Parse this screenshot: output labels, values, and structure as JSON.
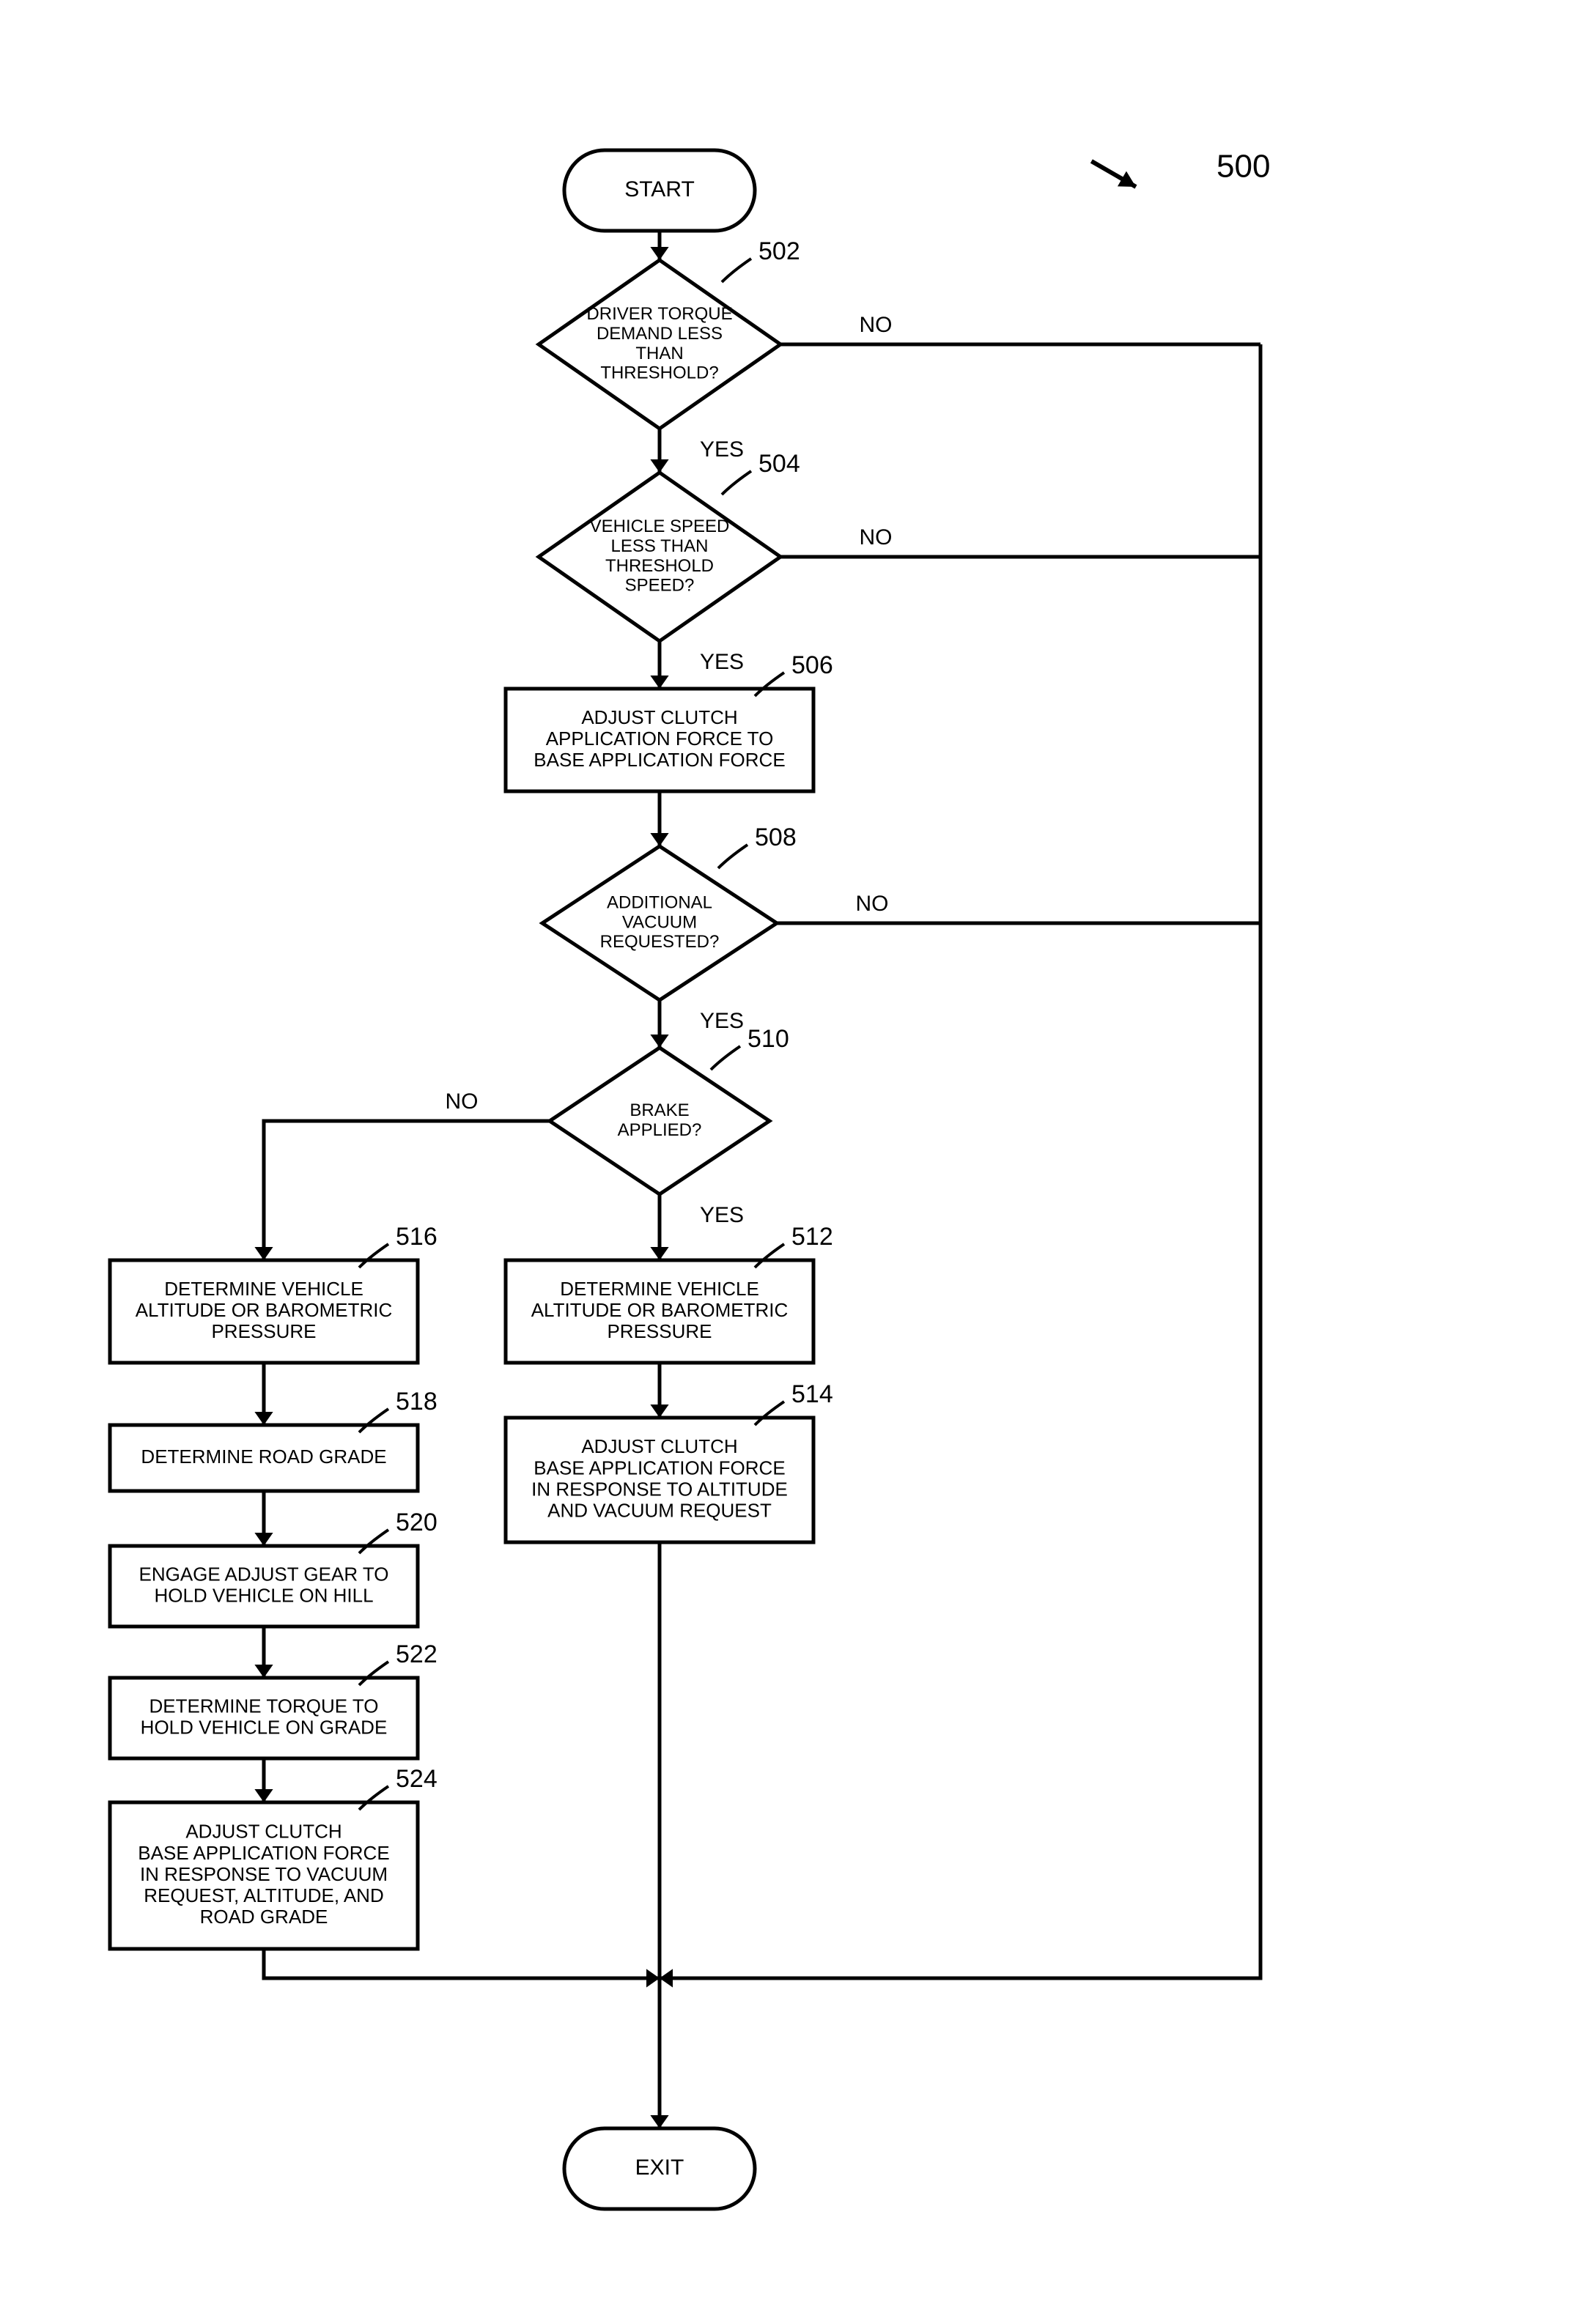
{
  "figure": {
    "ref_label": "500",
    "ref_label_fontsize": 44,
    "stroke_color": "#000000",
    "stroke_width": 5,
    "fill_color": "#ffffff",
    "font_family": "Arial, Helvetica, sans-serif"
  },
  "nodes": {
    "start": {
      "label": "START",
      "ref": "",
      "fontsize": 30
    },
    "d502": {
      "lines": [
        "DRIVER TORQUE",
        "DEMAND LESS",
        "THAN",
        "THRESHOLD?"
      ],
      "ref": "502",
      "fontsize": 24
    },
    "d504": {
      "lines": [
        "VEHICLE SPEED",
        "LESS THAN",
        "THRESHOLD",
        "SPEED?"
      ],
      "ref": "504",
      "fontsize": 24
    },
    "p506": {
      "lines": [
        "ADJUST CLUTCH",
        "APPLICATION FORCE TO",
        "BASE APPLICATION FORCE"
      ],
      "ref": "506",
      "fontsize": 26
    },
    "d508": {
      "lines": [
        "ADDITIONAL",
        "VACUUM",
        "REQUESTED?"
      ],
      "ref": "508",
      "fontsize": 24
    },
    "d510": {
      "lines": [
        "BRAKE",
        "APPLIED?"
      ],
      "ref": "510",
      "fontsize": 24
    },
    "p512": {
      "lines": [
        "DETERMINE VEHICLE",
        "ALTITUDE OR BAROMETRIC",
        "PRESSURE"
      ],
      "ref": "512",
      "fontsize": 26
    },
    "p514": {
      "lines": [
        "ADJUST CLUTCH",
        "BASE APPLICATION FORCE",
        "IN RESPONSE TO ALTITUDE",
        "AND VACUUM REQUEST"
      ],
      "ref": "514",
      "fontsize": 26
    },
    "p516": {
      "lines": [
        "DETERMINE VEHICLE",
        "ALTITUDE OR BAROMETRIC",
        "PRESSURE"
      ],
      "ref": "516",
      "fontsize": 26
    },
    "p518": {
      "lines": [
        "DETERMINE ROAD GRADE"
      ],
      "ref": "518",
      "fontsize": 26
    },
    "p520": {
      "lines": [
        "ENGAGE ADJUST GEAR TO",
        "HOLD VEHICLE ON HILL"
      ],
      "ref": "520",
      "fontsize": 26
    },
    "p522": {
      "lines": [
        "DETERMINE TORQUE TO",
        "HOLD VEHICLE ON GRADE"
      ],
      "ref": "522",
      "fontsize": 26
    },
    "p524": {
      "lines": [
        "ADJUST CLUTCH",
        "BASE APPLICATION FORCE",
        "IN RESPONSE TO VACUUM",
        "REQUEST, ALTITUDE, AND",
        "ROAD GRADE"
      ],
      "ref": "524",
      "fontsize": 26
    },
    "exit": {
      "label": "EXIT",
      "ref": "",
      "fontsize": 30
    }
  },
  "edge_labels": {
    "yes": "YES",
    "no": "NO",
    "fontsize": 30
  }
}
